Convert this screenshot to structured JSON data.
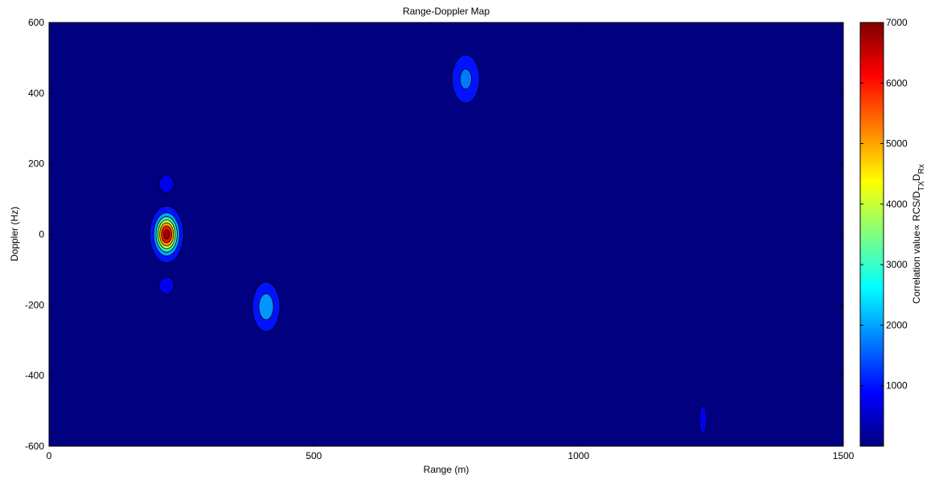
{
  "chart_data": {
    "type": "heatmap",
    "subtype": "filled-contour",
    "title": "Range-Doppler Map",
    "xlabel": "Range (m)",
    "ylabel": "Doppler (Hz)",
    "xlim": [
      0,
      1500
    ],
    "ylim": [
      -600,
      600
    ],
    "xticks": [
      0,
      500,
      1000,
      1500
    ],
    "yticks": [
      -600,
      -400,
      -200,
      0,
      200,
      400,
      600
    ],
    "background_value": 0,
    "colorbar": {
      "label": "Correlation value",
      "label_prefix": "Correlation value",
      "label_propto": "∝",
      "label_main": " RCS/D",
      "label_sub1": "TX",
      "label_mid": "D",
      "label_sub2": "Rx",
      "colormap": "jet",
      "range": [
        0,
        7000
      ],
      "ticks": [
        1000,
        2000,
        3000,
        4000,
        5000,
        6000,
        7000
      ]
    },
    "contour_levels": [
      0,
      500,
      1500,
      2500,
      3500,
      4500,
      5500,
      6500
    ],
    "peaks": [
      {
        "range": 222,
        "doppler": 0,
        "value": 7000,
        "range_width": 32,
        "doppler_width": 80
      },
      {
        "range": 410,
        "doppler": -205,
        "value": 2300,
        "range_width": 26,
        "doppler_width": 70
      },
      {
        "range": 787,
        "doppler": 440,
        "value": 1900,
        "range_width": 26,
        "doppler_width": 68
      },
      {
        "range": 222,
        "doppler": 143,
        "value": 1000,
        "range_width": 14,
        "doppler_width": 25
      },
      {
        "range": 222,
        "doppler": -145,
        "value": 1000,
        "range_width": 14,
        "doppler_width": 25
      },
      {
        "range": 1235,
        "doppler": -525,
        "value": 950,
        "range_width": 7,
        "doppler_width": 40
      }
    ]
  }
}
